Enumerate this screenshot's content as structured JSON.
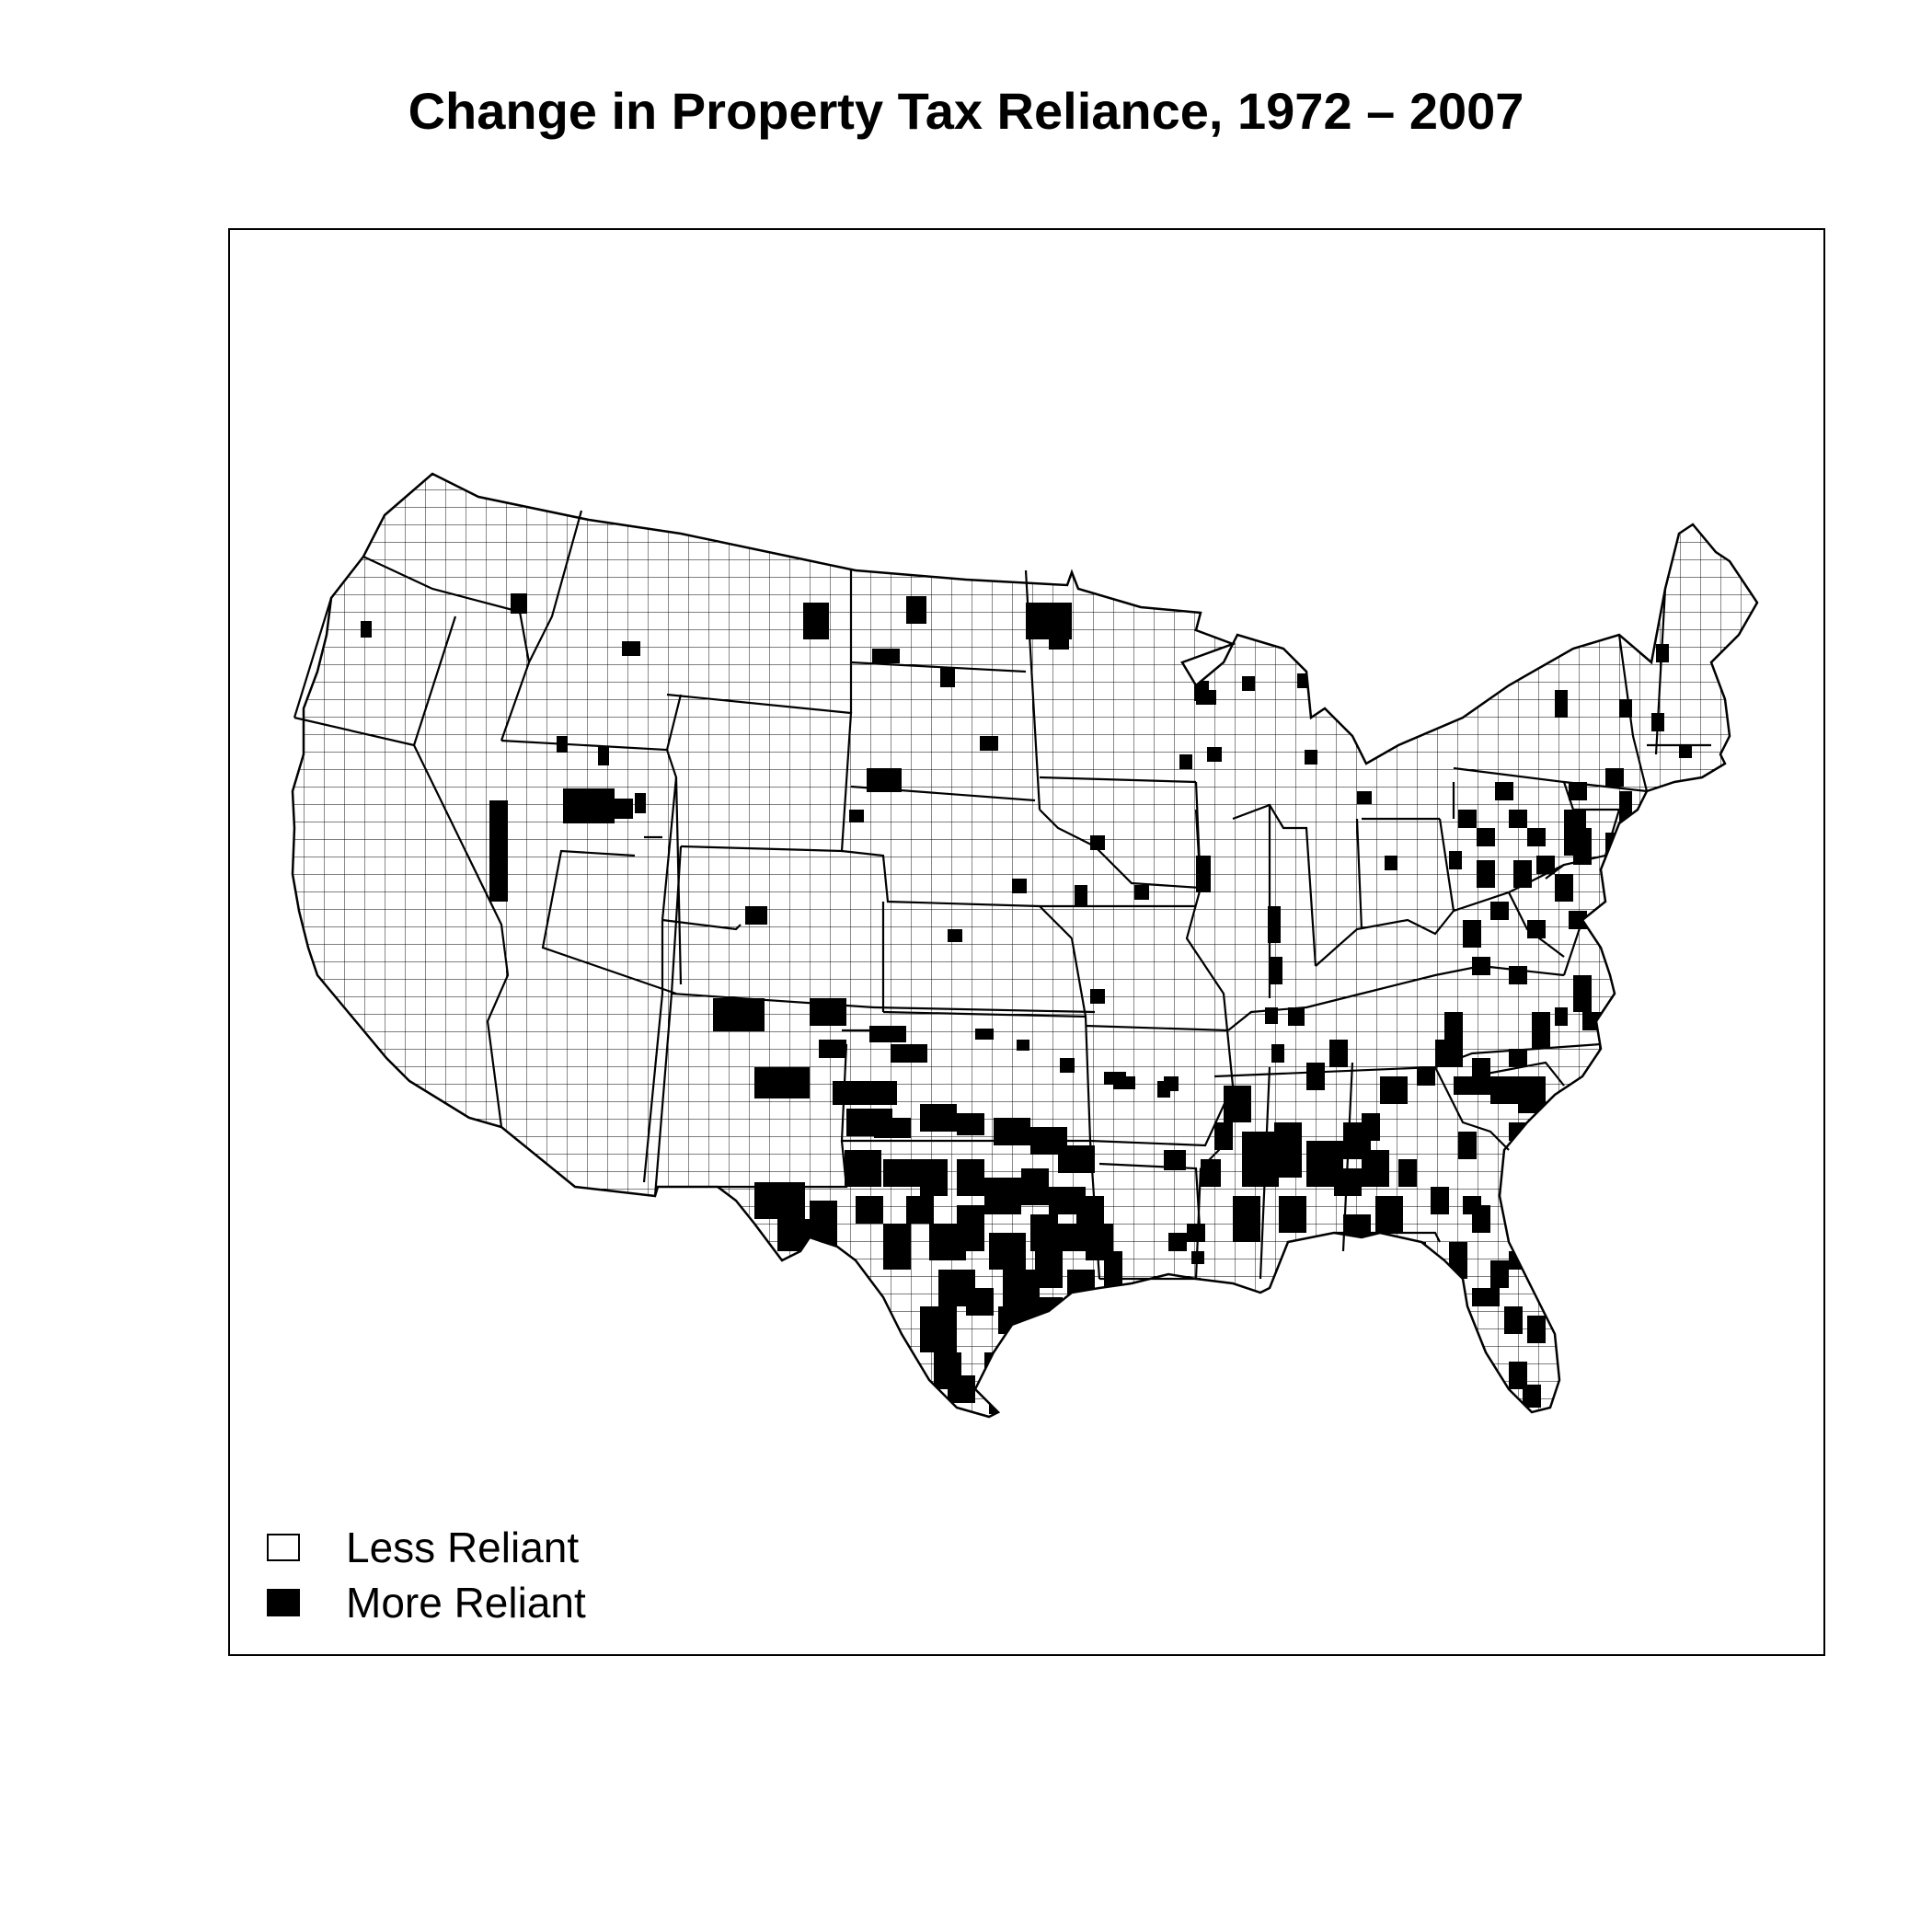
{
  "title": "Change in Property Tax Reliance, 1972 – 2007",
  "legend": {
    "items": [
      {
        "label": "Less Reliant",
        "color": "#ffffff"
      },
      {
        "label": "More Reliant",
        "color": "#000000"
      }
    ]
  },
  "colors": {
    "less": "#ffffff",
    "more": "#000000",
    "border": "#000000"
  }
}
